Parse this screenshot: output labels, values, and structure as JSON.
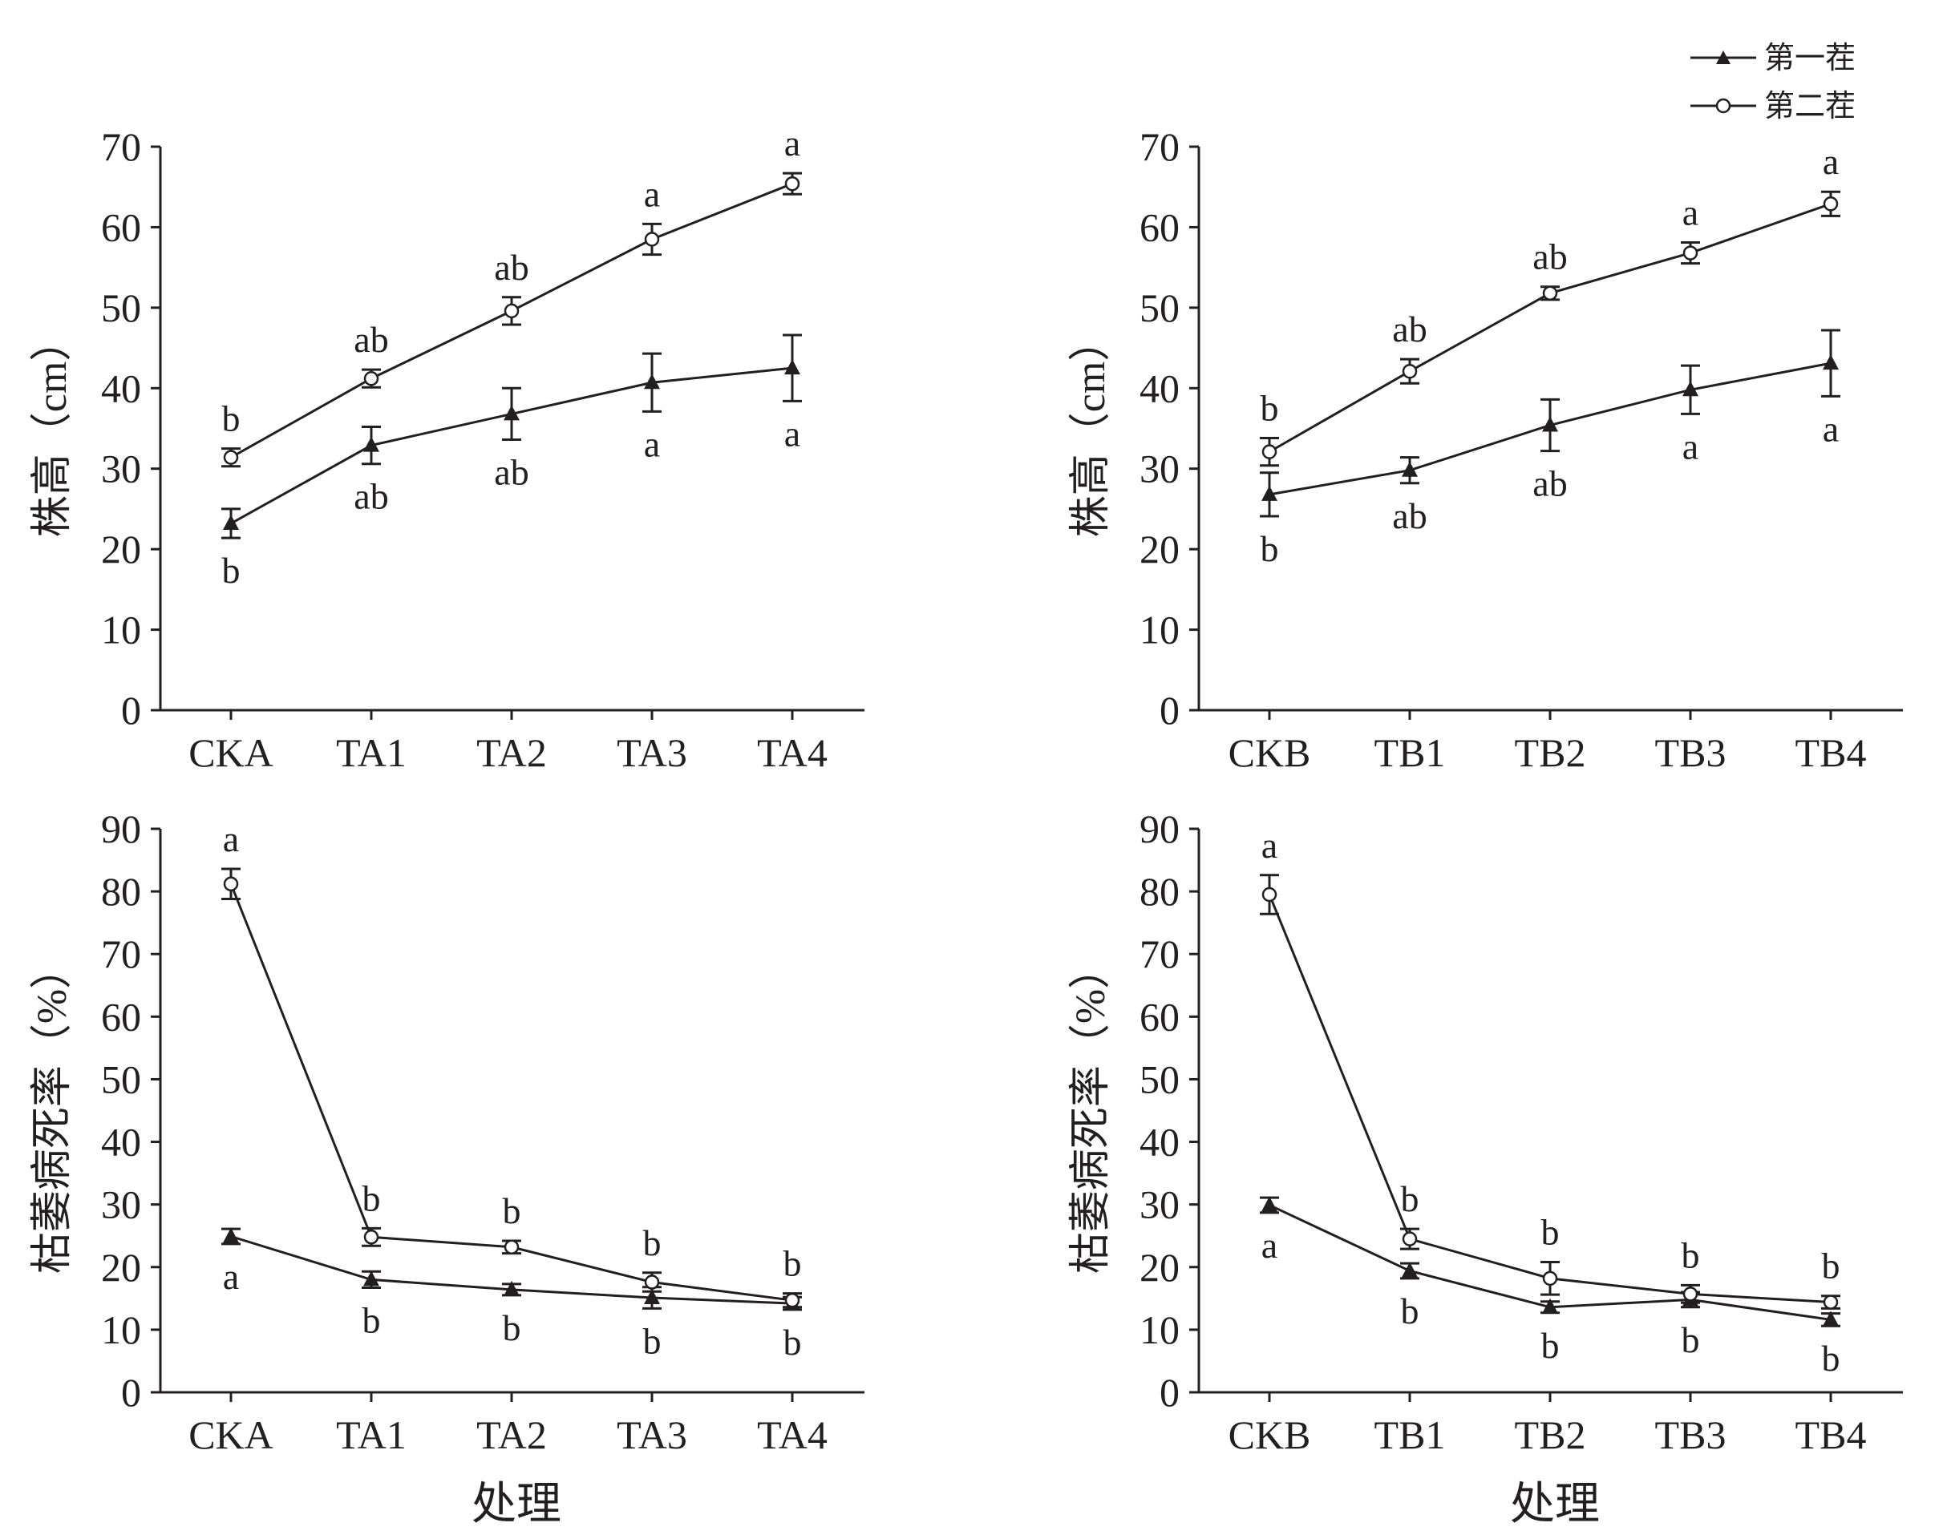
{
  "legend": {
    "entries": [
      {
        "label": "第一茬",
        "marker": "filled-triangle"
      },
      {
        "label": "第二茬",
        "marker": "open-circle"
      }
    ]
  },
  "colors": {
    "ink": "#231f20",
    "background": "#ffffff"
  },
  "chart_data": [
    {
      "type": "line",
      "ylabel": "株高（cm）",
      "xlabel": "",
      "ylim": [
        0,
        70
      ],
      "yticks": [
        0,
        10,
        20,
        30,
        40,
        50,
        60,
        70
      ],
      "categories": [
        "CKA",
        "TA1",
        "TA2",
        "TA3",
        "TA4"
      ],
      "series": [
        {
          "name": "第一茬",
          "marker": "triangle",
          "values": [
            23.2,
            32.9,
            36.8,
            40.7,
            42.5
          ],
          "errors": [
            1.8,
            2.3,
            3.2,
            3.6,
            4.1
          ],
          "labels": [
            "b",
            "ab",
            "ab",
            "a",
            "a"
          ],
          "label_side": "below"
        },
        {
          "name": "第二茬",
          "marker": "circle",
          "values": [
            31.4,
            41.2,
            49.6,
            58.5,
            65.4
          ],
          "errors": [
            1.1,
            1.1,
            1.7,
            1.9,
            1.3
          ],
          "labels": [
            "b",
            "ab",
            "ab",
            "a",
            "a"
          ],
          "label_side": "above"
        }
      ]
    },
    {
      "type": "line",
      "ylabel": "株高（cm）",
      "xlabel": "",
      "ylim": [
        0,
        70
      ],
      "yticks": [
        0,
        10,
        20,
        30,
        40,
        50,
        60,
        70
      ],
      "categories": [
        "CKB",
        "TB1",
        "TB2",
        "TB3",
        "TB4"
      ],
      "series": [
        {
          "name": "第一茬",
          "marker": "triangle",
          "values": [
            26.8,
            29.8,
            35.4,
            39.8,
            43.1
          ],
          "errors": [
            2.7,
            1.6,
            3.2,
            3.0,
            4.1
          ],
          "labels": [
            "b",
            "ab",
            "ab",
            "a",
            "a"
          ],
          "label_side": "below"
        },
        {
          "name": "第二茬",
          "marker": "circle",
          "values": [
            32.1,
            42.1,
            51.8,
            56.8,
            62.9
          ],
          "errors": [
            1.7,
            1.5,
            0.8,
            1.3,
            1.5
          ],
          "labels": [
            "b",
            "ab",
            "ab",
            "a",
            "a"
          ],
          "label_side": "above"
        }
      ]
    },
    {
      "type": "line",
      "ylabel": "枯萎病死率（%）",
      "xlabel": "处理",
      "ylim": [
        0,
        90
      ],
      "yticks": [
        0,
        10,
        20,
        30,
        40,
        50,
        60,
        70,
        80,
        90
      ],
      "categories": [
        "CKA",
        "TA1",
        "TA2",
        "TA3",
        "TA4"
      ],
      "series": [
        {
          "name": "第一茬",
          "marker": "triangle",
          "values": [
            24.9,
            18.0,
            16.4,
            15.1,
            14.2
          ],
          "errors": [
            1.2,
            1.3,
            0.9,
            1.7,
            1.0
          ],
          "labels": [
            "a",
            "b",
            "b",
            "b",
            "b"
          ],
          "label_side": "below"
        },
        {
          "name": "第二茬",
          "marker": "circle",
          "values": [
            81.2,
            24.8,
            23.2,
            17.6,
            14.7
          ],
          "errors": [
            2.4,
            1.4,
            1.0,
            1.5,
            1.1
          ],
          "labels": [
            "a",
            "b",
            "b",
            "b",
            "b"
          ],
          "label_side": "above"
        }
      ]
    },
    {
      "type": "line",
      "ylabel": "枯萎病死率（%）",
      "xlabel": "处理",
      "ylim": [
        0,
        90
      ],
      "yticks": [
        0,
        10,
        20,
        30,
        40,
        50,
        60,
        70,
        80,
        90
      ],
      "categories": [
        "CKB",
        "TB1",
        "TB2",
        "TB3",
        "TB4"
      ],
      "series": [
        {
          "name": "第一茬",
          "marker": "triangle",
          "values": [
            29.9,
            19.4,
            13.6,
            14.8,
            11.6
          ],
          "errors": [
            1.2,
            1.2,
            0.9,
            1.2,
            1.0
          ],
          "labels": [
            "a",
            "b",
            "b",
            "b",
            "b"
          ],
          "label_side": "below"
        },
        {
          "name": "第二茬",
          "marker": "circle",
          "values": [
            79.5,
            24.5,
            18.2,
            15.7,
            14.4
          ],
          "errors": [
            3.1,
            1.6,
            2.6,
            1.4,
            1.0
          ],
          "labels": [
            "a",
            "b",
            "b",
            "b",
            "b"
          ],
          "label_side": "above"
        }
      ]
    }
  ]
}
